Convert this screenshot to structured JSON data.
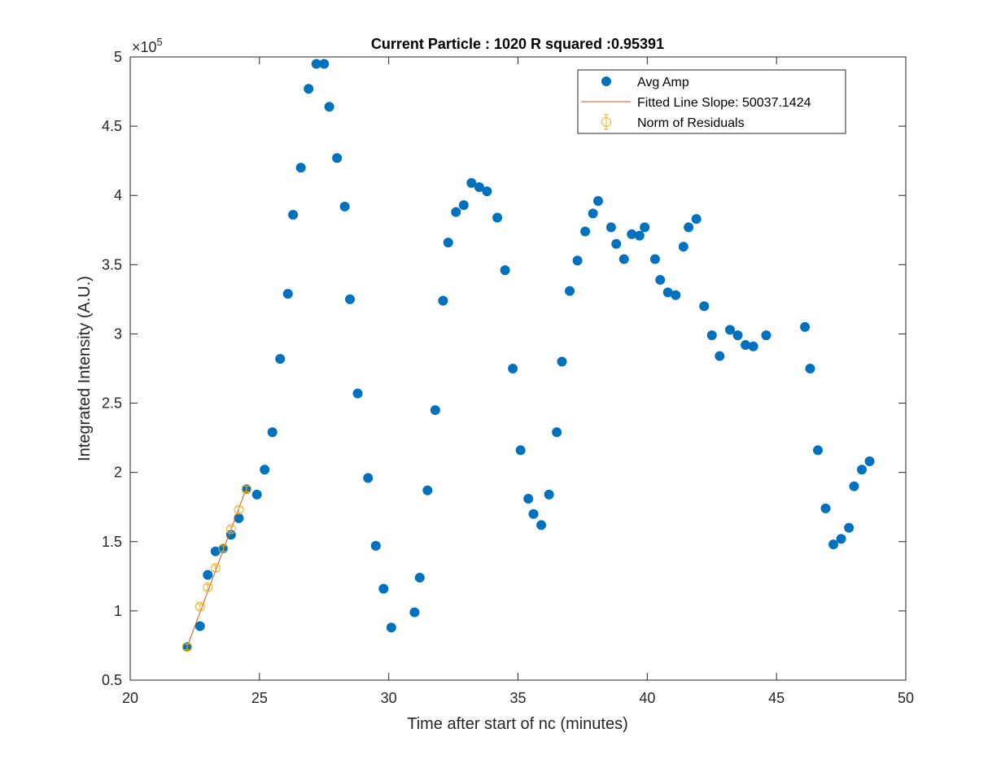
{
  "chart_data": {
    "type": "scatter",
    "title": "Current Particle : 1020   R squared :0.95391",
    "xlabel": "Time after start of nc (minutes)",
    "ylabel": "Integrated Intensity (A.U.)",
    "xlim": [
      20,
      50
    ],
    "ylim": [
      0.5,
      5
    ],
    "y_exponent_label": "×10",
    "y_exponent_power": "5",
    "xticks": [
      "20",
      "25",
      "30",
      "35",
      "40",
      "45",
      "50"
    ],
    "yticks": [
      "0.5",
      "1",
      "1.5",
      "2",
      "2.5",
      "3",
      "3.5",
      "4",
      "4.5",
      "5"
    ],
    "grid": false,
    "legend_position": "top-right",
    "colors": {
      "avg": "#0072BD",
      "fit": "#D95319",
      "resid": "#EDB120"
    },
    "series": [
      {
        "name": "Avg Amp",
        "kind": "points",
        "x": [
          22.2,
          22.7,
          23.0,
          23.3,
          23.6,
          23.9,
          24.2,
          24.5,
          24.9,
          25.2,
          25.5,
          25.8,
          26.1,
          26.3,
          26.6,
          26.9,
          27.2,
          27.5,
          27.7,
          28.0,
          28.3,
          28.5,
          28.8,
          29.2,
          29.5,
          29.8,
          30.1,
          31.0,
          31.2,
          31.5,
          31.8,
          32.1,
          32.3,
          32.6,
          32.9,
          33.2,
          33.5,
          33.8,
          34.2,
          34.5,
          34.8,
          35.1,
          35.4,
          35.6,
          35.9,
          36.2,
          36.5,
          36.7,
          37.0,
          37.3,
          37.6,
          37.9,
          38.1,
          38.6,
          38.8,
          39.1,
          39.4,
          39.7,
          39.9,
          40.3,
          40.5,
          40.8,
          41.1,
          41.4,
          41.6,
          41.9,
          42.2,
          42.5,
          42.8,
          43.2,
          43.5,
          43.8,
          44.1,
          44.6,
          46.1,
          46.3,
          46.6,
          46.9,
          47.2,
          47.5,
          47.8,
          48.0,
          48.3,
          48.6
        ],
        "y": [
          0.74,
          0.89,
          1.26,
          1.43,
          1.45,
          1.55,
          1.67,
          1.88,
          1.84,
          2.02,
          2.29,
          2.82,
          3.29,
          3.86,
          4.2,
          4.77,
          4.95,
          4.95,
          4.64,
          4.27,
          3.92,
          3.25,
          2.57,
          1.96,
          1.47,
          1.16,
          0.88,
          0.99,
          1.24,
          1.87,
          2.45,
          3.24,
          3.66,
          3.88,
          3.93,
          4.09,
          4.06,
          4.03,
          3.84,
          3.46,
          2.75,
          2.16,
          1.81,
          1.7,
          1.62,
          1.84,
          2.29,
          2.8,
          3.31,
          3.53,
          3.74,
          3.87,
          3.96,
          3.77,
          3.65,
          3.54,
          3.72,
          3.71,
          3.77,
          3.54,
          3.39,
          3.3,
          3.28,
          3.63,
          3.77,
          3.83,
          3.2,
          2.99,
          2.84,
          3.03,
          2.99,
          2.92,
          2.91,
          2.99,
          3.05,
          2.75,
          2.16,
          1.74,
          1.48,
          1.52,
          1.6,
          1.9,
          2.02,
          2.08
        ]
      },
      {
        "name": "Fitted Line Slope: 50037.1424",
        "kind": "line",
        "x": [
          22.2,
          24.5
        ],
        "y": [
          0.74,
          1.89
        ]
      },
      {
        "name": "Norm of Residuals",
        "kind": "errorbar",
        "x": [
          22.2,
          22.7,
          23.0,
          23.3,
          23.6,
          23.9,
          24.2,
          24.5
        ],
        "y": [
          0.74,
          1.03,
          1.17,
          1.31,
          1.45,
          1.59,
          1.73,
          1.88
        ]
      }
    ]
  }
}
